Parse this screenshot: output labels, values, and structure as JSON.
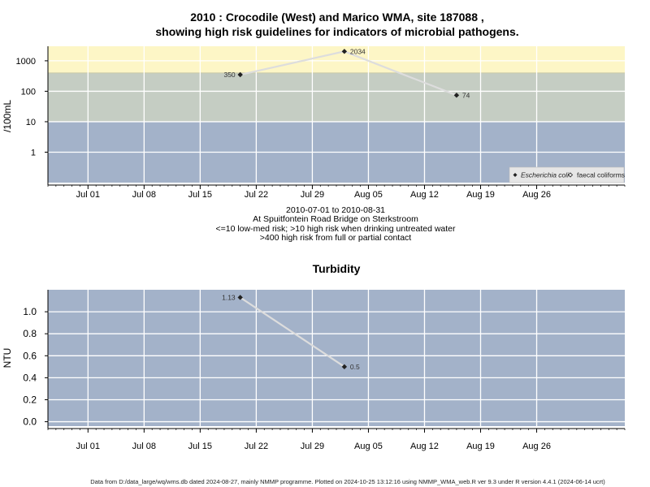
{
  "title_line1": "2010 : Crocodile (West) and Marico WMA, site 187088 ,",
  "title_line2": "showing high risk guidelines for indicators of microbial pathogens.",
  "subtitle": [
    "2010-07-01 to 2010-08-31",
    "At Spuitfontein Road Bridge on Sterkstroom",
    "<=10 low-med risk; >10 high risk when drinking untreated water",
    ">400 high risk from full or partial contact"
  ],
  "footer": "Data from D:/data_large/wq/wms.db dated 2024-08-27, mainly NMMP programme. Plotted on 2024-10-25 13:12:16 using NMMP_WMA_web.R ver 9.3 under R version 4.4.1 (2024-06-14 ucrt)",
  "colors": {
    "high_band": "#fdf6c6",
    "mid_band": "#c5cdc3",
    "low_band": "#a3b2c9",
    "line": "#dddddd",
    "point": "#222222"
  },
  "chart_data": [
    {
      "type": "line",
      "title": "",
      "ylabel": "/100mL",
      "y_scale": "log10",
      "ylim": [
        0.1,
        3000
      ],
      "xlim": [
        "2010-06-26",
        "2010-09-06"
      ],
      "x_ticks": [
        "Jul 01",
        "Jul 08",
        "Jul 15",
        "Jul 22",
        "Jul 29",
        "Aug 05",
        "Aug 12",
        "Aug 19",
        "Aug 26"
      ],
      "x_tick_dates": [
        "2010-07-01",
        "2010-07-08",
        "2010-07-15",
        "2010-07-22",
        "2010-07-29",
        "2010-08-05",
        "2010-08-12",
        "2010-08-19",
        "2010-08-26"
      ],
      "y_ticks": [
        1,
        10,
        100,
        1000
      ],
      "y_tick_labels": [
        "1",
        "10",
        "100",
        "1000"
      ],
      "bands": [
        {
          "from": 400,
          "to": 3000,
          "risk": "high risk from contact"
        },
        {
          "from": 10,
          "to": 400,
          "risk": "high risk drinking"
        },
        {
          "from": 0.1,
          "to": 10,
          "risk": "low-med risk"
        }
      ],
      "legend": [
        "Escherichia coli",
        "faecal coliforms"
      ],
      "legend_position": "bottom-right",
      "series": [
        {
          "name": "Escherichia coli",
          "x": [
            "2010-07-20",
            "2010-08-02",
            "2010-08-16"
          ],
          "y": [
            350,
            2034,
            74
          ],
          "labels": [
            "350",
            "2034",
            "74"
          ]
        }
      ]
    },
    {
      "type": "line",
      "title": "Turbidity",
      "ylabel": "NTU",
      "ylim": [
        -0.04,
        1.2
      ],
      "xlim": [
        "2010-06-26",
        "2010-09-06"
      ],
      "x_ticks": [
        "Jul 01",
        "Jul 08",
        "Jul 15",
        "Jul 22",
        "Jul 29",
        "Aug 05",
        "Aug 12",
        "Aug 19",
        "Aug 26"
      ],
      "x_tick_dates": [
        "2010-07-01",
        "2010-07-08",
        "2010-07-15",
        "2010-07-22",
        "2010-07-29",
        "2010-08-05",
        "2010-08-12",
        "2010-08-19",
        "2010-08-26"
      ],
      "y_ticks": [
        0.0,
        0.2,
        0.4,
        0.6,
        0.8,
        1.0
      ],
      "y_tick_labels": [
        "0.0",
        "0.2",
        "0.4",
        "0.6",
        "0.8",
        "1.0"
      ],
      "series": [
        {
          "x": [
            "2010-07-20",
            "2010-08-02"
          ],
          "y": [
            1.13,
            0.5
          ],
          "labels": [
            "1.13",
            "0.5"
          ]
        }
      ]
    }
  ]
}
